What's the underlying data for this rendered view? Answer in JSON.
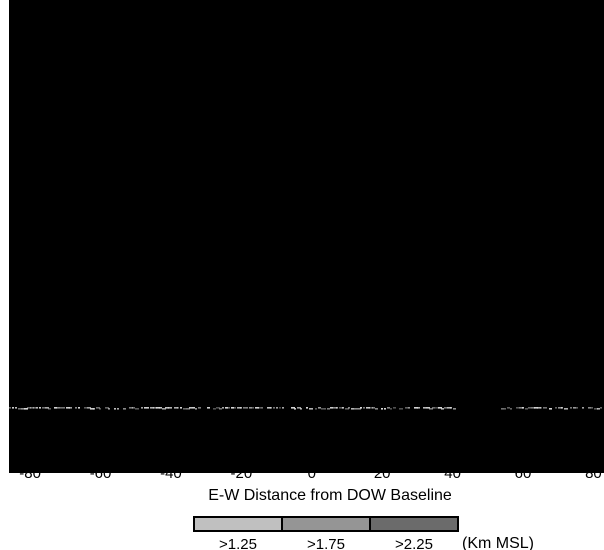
{
  "chart_data": {
    "type": "heatmap",
    "title": "",
    "xlabel": "E-W Distance from DOW Baseline",
    "ylabel": "",
    "x_ticks": [
      -80,
      -60,
      -40,
      -20,
      0,
      20,
      40,
      60,
      80
    ],
    "xlim": [
      -86,
      83
    ],
    "background_color": "#000000",
    "band_color": "#dddddd",
    "legend": {
      "items": [
        {
          "label": ">1.25",
          "color": "#c0c0c0"
        },
        {
          "label": ">1.75",
          "color": "#959595"
        },
        {
          "label": ">2.25",
          "color": "#6b6b6b"
        }
      ],
      "unit": "(Km MSL)"
    }
  }
}
